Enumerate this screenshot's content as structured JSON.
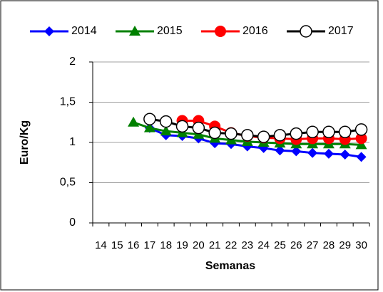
{
  "chart_data": {
    "type": "line",
    "categories": [
      "14",
      "15",
      "16",
      "17",
      "18",
      "19",
      "20",
      "21",
      "22",
      "23",
      "24",
      "25",
      "26",
      "27",
      "28",
      "29",
      "30"
    ],
    "x_label": "Semanas",
    "y_label": "Euro/Kg",
    "ylim": [
      0,
      2
    ],
    "yticks": [
      0,
      {
        "value": 0.5,
        "label": "0,5"
      },
      1,
      {
        "value": 1.5,
        "label": "1,5"
      },
      2
    ],
    "grid": true,
    "legend": "top",
    "series": [
      {
        "name": "2014",
        "color": "#0000ff",
        "marker": "diamond",
        "values": [
          null,
          null,
          null,
          1.18,
          1.09,
          1.08,
          1.05,
          0.99,
          0.98,
          0.95,
          0.93,
          0.9,
          0.89,
          0.87,
          0.86,
          0.85,
          0.82
        ]
      },
      {
        "name": "2015",
        "color": "#008000",
        "marker": "triangle",
        "values": [
          null,
          null,
          1.25,
          1.18,
          1.14,
          1.12,
          1.1,
          1.05,
          1.03,
          1.01,
          1.0,
          0.99,
          0.98,
          0.98,
          0.98,
          0.98,
          0.97
        ]
      },
      {
        "name": "2016",
        "color": "#ff0000",
        "marker": "circle",
        "values": [
          null,
          null,
          null,
          null,
          null,
          1.27,
          1.27,
          1.2,
          1.12,
          1.08,
          1.06,
          1.05,
          1.04,
          1.05,
          1.05,
          1.04,
          1.05
        ]
      },
      {
        "name": "2017",
        "color": "#000000",
        "marker": "open-circle",
        "values": [
          null,
          null,
          null,
          1.29,
          1.26,
          1.2,
          1.18,
          1.12,
          1.11,
          1.09,
          1.07,
          1.09,
          1.11,
          1.13,
          1.13,
          1.13,
          1.16
        ]
      }
    ]
  }
}
